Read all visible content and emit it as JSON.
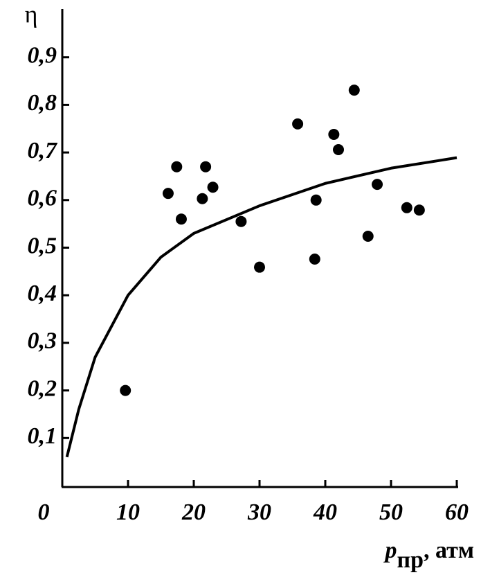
{
  "chart_data": {
    "type": "scatter",
    "y_label": "η",
    "x_label": {
      "symbol": "p",
      "subscript": "пр",
      "unit": ", атм"
    },
    "xlim": [
      0,
      60
    ],
    "ylim": [
      0,
      1
    ],
    "xticks": [
      0,
      10,
      20,
      30,
      40,
      50,
      60
    ],
    "yticks": [
      {
        "value": 0.1,
        "label": "0,1"
      },
      {
        "value": 0.2,
        "label": "0,2"
      },
      {
        "value": 0.3,
        "label": "0,3"
      },
      {
        "value": 0.4,
        "label": "0,4"
      },
      {
        "value": 0.5,
        "label": "0,5"
      },
      {
        "value": 0.6,
        "label": "0,6"
      },
      {
        "value": 0.7,
        "label": "0,7"
      },
      {
        "value": 0.8,
        "label": "0,8"
      },
      {
        "value": 0.9,
        "label": "0,9"
      }
    ],
    "series": [
      {
        "type": "scatter",
        "color": "#000000",
        "x": [
          9.6,
          16.1,
          17.4,
          18.1,
          21.3,
          21.8,
          22.9,
          27.2,
          30.0,
          35.8,
          38.4,
          38.6,
          41.3,
          42.0,
          44.4,
          46.5,
          47.9,
          52.4,
          54.3
        ],
        "values": [
          0.2,
          0.614,
          0.67,
          0.56,
          0.603,
          0.67,
          0.627,
          0.555,
          0.459,
          0.76,
          0.476,
          0.6,
          0.738,
          0.706,
          0.831,
          0.524,
          0.633,
          0.584,
          0.579
        ]
      },
      {
        "type": "line",
        "color": "#000000",
        "x": [
          0.7,
          2.5,
          5,
          10,
          15,
          20,
          30,
          40,
          50,
          60
        ],
        "values": [
          0.06,
          0.16,
          0.27,
          0.4,
          0.48,
          0.53,
          0.588,
          0.635,
          0.667,
          0.689
        ]
      }
    ]
  }
}
